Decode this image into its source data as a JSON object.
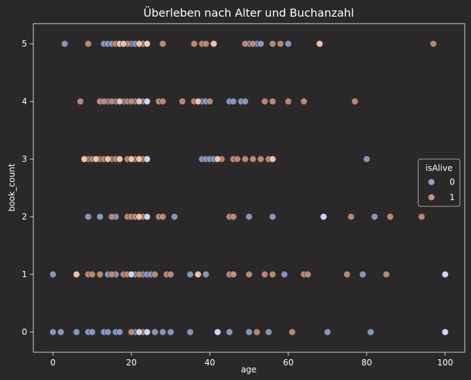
{
  "chart_data": {
    "type": "scatter",
    "title": "Überleben nach Alter und Buchanzahl",
    "xlabel": "age",
    "ylabel": "book_count",
    "xlim": [
      -5,
      105
    ],
    "ylim": [
      -0.35,
      5.35
    ],
    "xticks": [
      0,
      20,
      40,
      60,
      80,
      100
    ],
    "yticks": [
      0,
      1,
      2,
      3,
      4,
      5
    ],
    "grid": false,
    "legend": {
      "title": "isAlive",
      "placement": "center-right"
    },
    "series": [
      {
        "name": "0",
        "color": "#8fa2cc",
        "points": [
          [
            3,
            5
          ],
          [
            13,
            5
          ],
          [
            14,
            5
          ],
          [
            15,
            5
          ],
          [
            17,
            5
          ],
          [
            20,
            5
          ],
          [
            21,
            5
          ],
          [
            22,
            5
          ],
          [
            23,
            5
          ],
          [
            24,
            5
          ],
          [
            50,
            5
          ],
          [
            52,
            5
          ],
          [
            53,
            5
          ],
          [
            60,
            5
          ],
          [
            12,
            4
          ],
          [
            14,
            4
          ],
          [
            16,
            4
          ],
          [
            17,
            4
          ],
          [
            18,
            4
          ],
          [
            21,
            4
          ],
          [
            23,
            4
          ],
          [
            24,
            4
          ],
          [
            38,
            4
          ],
          [
            39,
            4
          ],
          [
            45,
            4
          ],
          [
            46,
            4
          ],
          [
            48,
            4
          ],
          [
            49,
            4
          ],
          [
            24,
            3
          ],
          [
            38,
            3
          ],
          [
            39,
            3
          ],
          [
            40,
            3
          ],
          [
            41,
            3
          ],
          [
            80,
            3
          ],
          [
            9,
            2
          ],
          [
            12,
            2
          ],
          [
            16,
            2
          ],
          [
            21,
            2
          ],
          [
            22,
            2
          ],
          [
            24,
            2
          ],
          [
            31,
            2
          ],
          [
            50,
            2
          ],
          [
            56,
            2
          ],
          [
            69,
            2
          ],
          [
            82,
            2
          ],
          [
            0,
            1
          ],
          [
            14,
            1
          ],
          [
            16,
            1
          ],
          [
            20,
            1
          ],
          [
            21,
            1
          ],
          [
            23,
            1
          ],
          [
            24,
            1
          ],
          [
            25,
            1
          ],
          [
            35,
            1
          ],
          [
            39,
            1
          ],
          [
            46,
            1
          ],
          [
            59,
            1
          ],
          [
            79,
            1
          ],
          [
            100,
            1
          ],
          [
            0,
            0
          ],
          [
            2,
            0
          ],
          [
            6,
            0
          ],
          [
            9,
            0
          ],
          [
            10,
            0
          ],
          [
            13,
            0
          ],
          [
            14,
            0
          ],
          [
            16,
            0
          ],
          [
            17,
            0
          ],
          [
            21,
            0
          ],
          [
            22,
            0
          ],
          [
            24,
            0
          ],
          [
            26,
            0
          ],
          [
            28,
            0
          ],
          [
            30,
            0
          ],
          [
            35,
            0
          ],
          [
            42,
            0
          ],
          [
            45,
            0
          ],
          [
            50,
            0
          ],
          [
            55,
            0
          ],
          [
            70,
            0
          ],
          [
            81,
            0
          ],
          [
            100,
            0
          ]
        ]
      },
      {
        "name": "1",
        "color": "#c8917b",
        "points": [
          [
            9,
            5
          ],
          [
            16,
            5
          ],
          [
            17,
            5
          ],
          [
            18,
            5
          ],
          [
            19,
            5
          ],
          [
            22,
            5
          ],
          [
            23,
            5
          ],
          [
            24,
            5
          ],
          [
            28,
            5
          ],
          [
            36,
            5
          ],
          [
            38,
            5
          ],
          [
            39,
            5
          ],
          [
            41,
            5
          ],
          [
            49,
            5
          ],
          [
            51,
            5
          ],
          [
            56,
            5
          ],
          [
            58,
            5
          ],
          [
            68,
            5
          ],
          [
            97,
            5
          ],
          [
            7,
            4
          ],
          [
            12,
            4
          ],
          [
            13,
            4
          ],
          [
            15,
            4
          ],
          [
            19,
            4
          ],
          [
            20,
            4
          ],
          [
            22,
            4
          ],
          [
            27,
            4
          ],
          [
            28,
            4
          ],
          [
            33,
            4
          ],
          [
            36,
            4
          ],
          [
            37,
            4
          ],
          [
            40,
            4
          ],
          [
            54,
            4
          ],
          [
            56,
            4
          ],
          [
            60,
            4
          ],
          [
            64,
            4
          ],
          [
            77,
            4
          ],
          [
            8,
            3
          ],
          [
            9,
            3
          ],
          [
            10,
            3
          ],
          [
            11,
            3
          ],
          [
            12,
            3
          ],
          [
            13,
            3
          ],
          [
            14,
            3
          ],
          [
            15,
            3
          ],
          [
            16,
            3
          ],
          [
            17,
            3
          ],
          [
            19,
            3
          ],
          [
            20,
            3
          ],
          [
            21,
            3
          ],
          [
            22,
            3
          ],
          [
            23,
            3
          ],
          [
            42,
            3
          ],
          [
            43,
            3
          ],
          [
            46,
            3
          ],
          [
            47,
            3
          ],
          [
            49,
            3
          ],
          [
            51,
            3
          ],
          [
            53,
            3
          ],
          [
            55,
            3
          ],
          [
            56,
            3
          ],
          [
            15,
            2
          ],
          [
            19,
            2
          ],
          [
            20,
            2
          ],
          [
            21,
            2
          ],
          [
            22,
            2
          ],
          [
            23,
            2
          ],
          [
            27,
            2
          ],
          [
            28,
            2
          ],
          [
            45,
            2
          ],
          [
            46,
            2
          ],
          [
            76,
            2
          ],
          [
            86,
            2
          ],
          [
            94,
            2
          ],
          [
            6,
            1
          ],
          [
            9,
            1
          ],
          [
            10,
            1
          ],
          [
            12,
            1
          ],
          [
            15,
            1
          ],
          [
            18,
            1
          ],
          [
            19,
            1
          ],
          [
            22,
            1
          ],
          [
            26,
            1
          ],
          [
            29,
            1
          ],
          [
            30,
            1
          ],
          [
            37,
            1
          ],
          [
            45,
            1
          ],
          [
            46,
            1
          ],
          [
            50,
            1
          ],
          [
            54,
            1
          ],
          [
            56,
            1
          ],
          [
            64,
            1
          ],
          [
            65,
            1
          ],
          [
            75,
            1
          ],
          [
            85,
            1
          ],
          [
            20,
            0
          ],
          [
            23,
            0
          ],
          [
            52,
            0
          ],
          [
            61,
            0
          ]
        ]
      },
      {
        "name": "",
        "color": "#d4ddf5",
        "points": [
          [
            24,
            5
          ],
          [
            24,
            4
          ],
          [
            24,
            3
          ],
          [
            24,
            2
          ],
          [
            69,
            2
          ],
          [
            20,
            1
          ],
          [
            100,
            1
          ],
          [
            22,
            0
          ],
          [
            24,
            0
          ],
          [
            42,
            0
          ],
          [
            100,
            0
          ]
        ]
      },
      {
        "name": "",
        "color": "#f6c7b0",
        "points": [
          [
            17,
            5
          ],
          [
            18,
            5
          ],
          [
            22,
            5
          ],
          [
            24,
            5
          ],
          [
            68,
            5
          ],
          [
            41,
            5
          ],
          [
            17,
            4
          ],
          [
            22,
            4
          ],
          [
            37,
            4
          ],
          [
            8,
            3
          ],
          [
            11,
            3
          ],
          [
            14,
            3
          ],
          [
            17,
            3
          ],
          [
            20,
            3
          ],
          [
            22,
            3
          ],
          [
            42,
            3
          ],
          [
            56,
            3
          ],
          [
            22,
            2
          ],
          [
            6,
            1
          ],
          [
            37,
            1
          ]
        ]
      }
    ]
  }
}
